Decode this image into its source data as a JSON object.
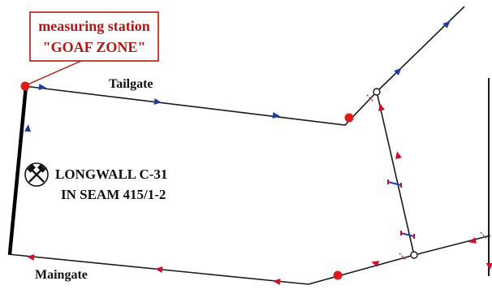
{
  "callout": {
    "line1": "measuring station",
    "line2": "\"GOAF ZONE\""
  },
  "labels": {
    "tailgate": "Tailgate",
    "maingate": "Maingate",
    "longwall_line1": "LONGWALL C-31",
    "longwall_line2": "IN SEAM 415/1-2"
  },
  "icons": {
    "longwall": "crossed-hammers-icon"
  },
  "colors": {
    "airway": "#1a1a1a",
    "longwall_face": "#000000",
    "fresh_air_arrow": "#c8102e",
    "return_air_arrow": "#1f3c9c",
    "measuring_point": "#e01b1b",
    "callout": "#b01818",
    "regulator": "#2b3aa0"
  }
}
